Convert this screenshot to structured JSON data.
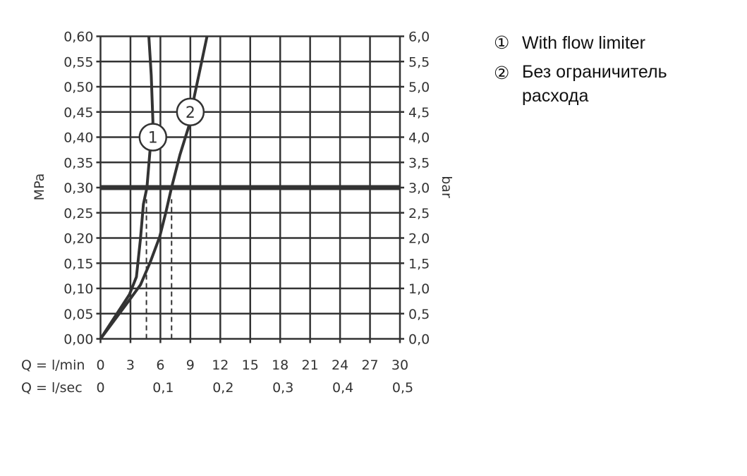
{
  "chart_data": {
    "type": "line",
    "title": "",
    "ylabel_left": "MPa",
    "ylabel_right": "bar",
    "xlabel_rows": [
      "Q = l/min",
      "Q = l/sec"
    ],
    "xlim": [
      0,
      30
    ],
    "ylim": [
      0,
      0.6
    ],
    "grid": true,
    "x_ticks_lmin": [
      "0",
      "3",
      "6",
      "9",
      "12",
      "15",
      "18",
      "21",
      "24",
      "27",
      "30"
    ],
    "x_ticks_lsec": [
      {
        "at": 0,
        "label": "0"
      },
      {
        "at": 6,
        "label": "0,1"
      },
      {
        "at": 12,
        "label": "0,2"
      },
      {
        "at": 18,
        "label": "0,3"
      },
      {
        "at": 24,
        "label": "0,4"
      },
      {
        "at": 30,
        "label": "0,5"
      }
    ],
    "y_ticks_left": [
      "0,00",
      "0,05",
      "0,10",
      "0,15",
      "0,20",
      "0,25",
      "0,30",
      "0,35",
      "0,40",
      "0,45",
      "0,50",
      "0,55",
      "0,60"
    ],
    "y_ticks_right": [
      "0,0",
      "0,5",
      "1,0",
      "1,5",
      "2,0",
      "2,5",
      "3,0",
      "3,5",
      "4,0",
      "4,5",
      "5,0",
      "5,5",
      "6,0"
    ],
    "reference_line_mpa": 0.3,
    "series": [
      {
        "name": "1",
        "label_at": [
          5.25,
          0.4
        ],
        "x": [
          0,
          2.9,
          3.6,
          4.0,
          4.3,
          4.65,
          4.96,
          5.25,
          5.08,
          4.84
        ],
        "y": [
          0,
          0.088,
          0.123,
          0.198,
          0.267,
          0.3,
          0.374,
          0.43,
          0.523,
          0.6
        ],
        "marker_x": 4.6
      },
      {
        "name": "2",
        "label_at": [
          9.0,
          0.45
        ],
        "x": [
          0,
          2.9,
          4.0,
          4.96,
          5.92,
          6.52,
          7.12,
          7.96,
          8.92,
          9.4,
          10.67
        ],
        "y": [
          0,
          0.077,
          0.107,
          0.151,
          0.202,
          0.249,
          0.3,
          0.365,
          0.426,
          0.481,
          0.6
        ],
        "marker_x": 7.12
      }
    ],
    "marker_top_mpa": 0.277,
    "line_color": "#333333"
  },
  "legend": [
    {
      "num": "①",
      "text": "With flow limiter"
    },
    {
      "num": "②",
      "text": "Без ограничитель расхода"
    }
  ]
}
